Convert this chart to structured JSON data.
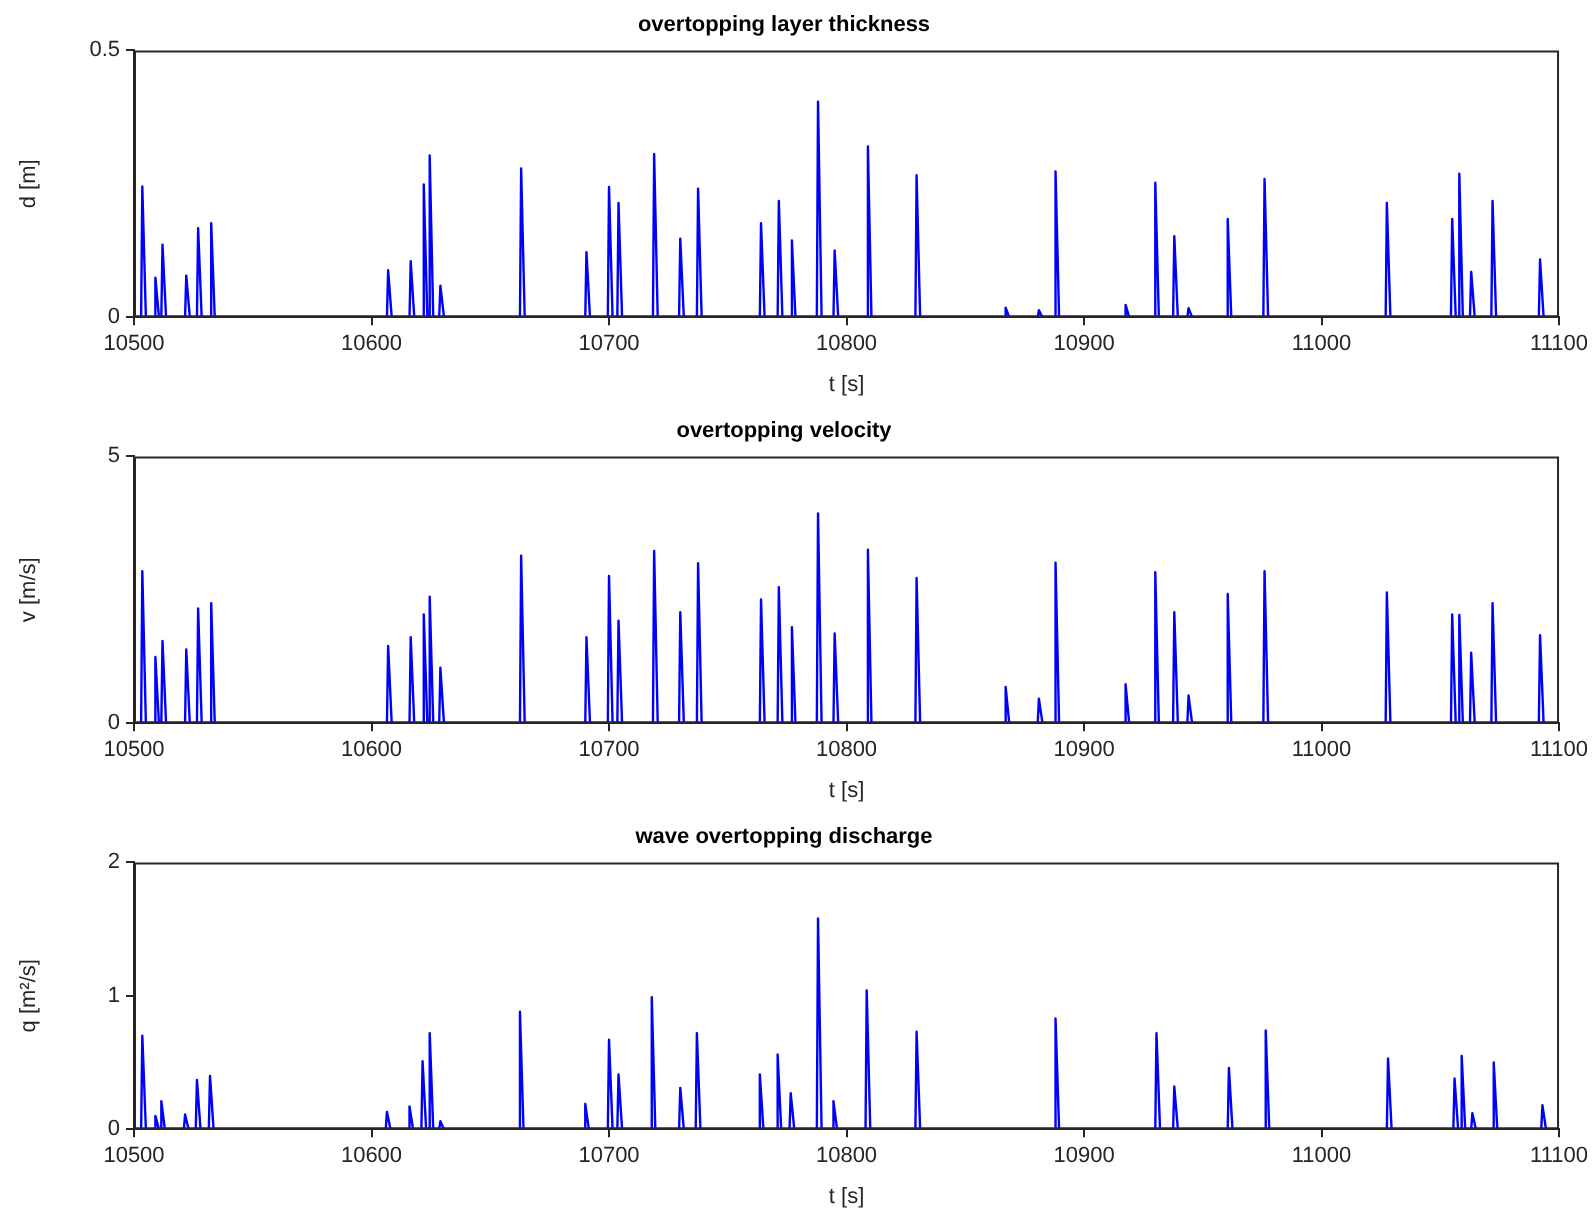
{
  "chart_data": [
    {
      "type": "line",
      "title": "overtopping layer thickness",
      "xlabel": "t [s]",
      "ylabel": "d [m]",
      "xlim": [
        10500,
        11100
      ],
      "xticks": [
        10500,
        10600,
        10700,
        10800,
        10900,
        11000,
        11100
      ],
      "ylim": [
        0,
        0.5
      ],
      "yticks": [
        0,
        0.5
      ],
      "grid": false,
      "legend": false,
      "marker": "none",
      "line_style": "solid",
      "series": [
        {
          "color": "#0000ff",
          "x": [
            10500,
            10503,
            10503.5,
            10505,
            10508.5,
            10509,
            10510.5,
            10511.5,
            10512,
            10513.5,
            10521.5,
            10522,
            10523.5,
            10526.5,
            10527,
            10528.5,
            10532,
            10532.5,
            10534,
            10606.5,
            10607,
            10608.5,
            10616,
            10616.5,
            10618,
            10621.5,
            10622,
            10623.5,
            10624,
            10624.5,
            10626,
            10628.5,
            10629,
            10630.5,
            10662.5,
            10663,
            10664.5,
            10690,
            10690.5,
            10692,
            10699.5,
            10700,
            10701.5,
            10703.5,
            10704,
            10705.5,
            10718.5,
            10719,
            10720.5,
            10729.5,
            10730,
            10731.5,
            10737,
            10737.5,
            10739,
            10763.5,
            10764,
            10765.5,
            10771,
            10771.5,
            10773,
            10776.5,
            10777,
            10778.5,
            10787.5,
            10788,
            10789.5,
            10794.5,
            10795,
            10796.5,
            10808.5,
            10809,
            10810.5,
            10829,
            10829.5,
            10831,
            10866.5,
            10867,
            10868.5,
            10880.5,
            10881,
            10882.5,
            10887.5,
            10888,
            10889.5,
            10917,
            10917.5,
            10919,
            10929.5,
            10930,
            10931.5,
            10937.5,
            10938,
            10939.5,
            10943.5,
            10944,
            10945.5,
            10960,
            10960.5,
            10962,
            10975.5,
            10976,
            10977.5,
            11027,
            11027.5,
            11029,
            11054.5,
            11055,
            11056.5,
            11057.5,
            11058,
            11059.5,
            11062.5,
            11063,
            11064.5,
            11071.5,
            11072,
            11073.5,
            11091.5,
            11092,
            11093.5
          ],
          "values": [
            0,
            0,
            0.245,
            0,
            0,
            0.074,
            0,
            0,
            0.136,
            0,
            0,
            0.078,
            0,
            0,
            0.167,
            0,
            0,
            0.176,
            0,
            0,
            0.088,
            0,
            0,
            0.105,
            0,
            0,
            0.249,
            0,
            0,
            0.303,
            0,
            0,
            0.059,
            0,
            0,
            0.279,
            0,
            0,
            0.122,
            0,
            0,
            0.244,
            0,
            0,
            0.214,
            0,
            0,
            0.306,
            0,
            0,
            0.147,
            0,
            0,
            0.241,
            0,
            0,
            0.176,
            0,
            0,
            0.218,
            0,
            0,
            0.144,
            0,
            0,
            0.404,
            0,
            0,
            0.125,
            0,
            0,
            0.32,
            0,
            0,
            0.266,
            0,
            0,
            0.018,
            0,
            0,
            0.013,
            0,
            0,
            0.273,
            0,
            0,
            0.023,
            0,
            0,
            0.252,
            0,
            0,
            0.152,
            0,
            0,
            0.017,
            0,
            0,
            0.184,
            0,
            0,
            0.259,
            0,
            0,
            0.214,
            0,
            0,
            0.184,
            0,
            0,
            0.269,
            0,
            0,
            0.085,
            0,
            0,
            0.218,
            0,
            0,
            0.108,
            0
          ]
        }
      ]
    },
    {
      "type": "line",
      "title": "overtopping velocity",
      "xlabel": "t [s]",
      "ylabel": "v [m/s]",
      "xlim": [
        10500,
        11100
      ],
      "xticks": [
        10500,
        10600,
        10700,
        10800,
        10900,
        11000,
        11100
      ],
      "ylim": [
        0,
        5
      ],
      "yticks": [
        0,
        5
      ],
      "grid": false,
      "legend": false,
      "marker": "none",
      "line_style": "solid",
      "series": [
        {
          "color": "#0000ff",
          "x": [
            10500,
            10503,
            10503.5,
            10505,
            10508.5,
            10509,
            10510.5,
            10511.5,
            10512,
            10513.5,
            10521.5,
            10522,
            10523.5,
            10526.5,
            10527,
            10528.5,
            10532,
            10532.5,
            10534,
            10606.5,
            10607,
            10608.5,
            10616,
            10616.5,
            10618,
            10621.5,
            10622,
            10623.5,
            10624,
            10624.5,
            10626,
            10628.5,
            10629,
            10630.5,
            10662.5,
            10663,
            10664.5,
            10690,
            10690.5,
            10692,
            10699.5,
            10700,
            10701.5,
            10703.5,
            10704,
            10705.5,
            10718.5,
            10719,
            10720.5,
            10729.5,
            10730,
            10731.5,
            10737,
            10737.5,
            10739,
            10763.5,
            10764,
            10765.5,
            10771,
            10771.5,
            10773,
            10776.5,
            10777,
            10778.5,
            10787.5,
            10788,
            10789.5,
            10794.5,
            10795,
            10796.5,
            10808.5,
            10809,
            10810.5,
            10829,
            10829.5,
            10831,
            10866.5,
            10867,
            10868.5,
            10880.5,
            10881,
            10882.5,
            10887.5,
            10888,
            10889.5,
            10917,
            10917.5,
            10919,
            10929.5,
            10930,
            10931.5,
            10937.5,
            10938,
            10939.5,
            10943.5,
            10944,
            10945.5,
            10960,
            10960.5,
            10962,
            10975.5,
            10976,
            10977.5,
            11027,
            11027.5,
            11029,
            11054.5,
            11055,
            11056.5,
            11057.5,
            11058,
            11059.5,
            11062.5,
            11063,
            11064.5,
            11071.5,
            11072,
            11073.5,
            11091.5,
            11092,
            11093.5
          ],
          "values": [
            0,
            0,
            2.85,
            0,
            0,
            1.24,
            0,
            0,
            1.54,
            0,
            0,
            1.38,
            0,
            0,
            2.15,
            0,
            0,
            2.25,
            0,
            0,
            1.45,
            0,
            0,
            1.61,
            0,
            0,
            2.04,
            0,
            0,
            2.37,
            0,
            0,
            1.04,
            0,
            0,
            3.14,
            0,
            0,
            1.61,
            0,
            0,
            2.76,
            0,
            0,
            1.92,
            0,
            0,
            3.23,
            0,
            0,
            2.08,
            0,
            0,
            3,
            0,
            0,
            2.32,
            0,
            0,
            2.55,
            0,
            0,
            1.8,
            0,
            0,
            3.93,
            0,
            0,
            1.68,
            0,
            0,
            3.25,
            0,
            0,
            2.72,
            0,
            0,
            0.68,
            0,
            0,
            0.46,
            0,
            0,
            3.01,
            0,
            0,
            0.73,
            0,
            0,
            2.83,
            0,
            0,
            2.08,
            0,
            0,
            0.52,
            0,
            0,
            2.42,
            0,
            0,
            2.85,
            0,
            0,
            2.45,
            0,
            0,
            2.04,
            0,
            0,
            2.03,
            0,
            0,
            1.32,
            0,
            0,
            2.25,
            0,
            0,
            1.65,
            0
          ]
        }
      ]
    },
    {
      "type": "line",
      "title": "wave overtopping discharge",
      "xlabel": "t [s]",
      "ylabel": "q [m²/s]",
      "xlim": [
        10500,
        11100
      ],
      "xticks": [
        10500,
        10600,
        10700,
        10800,
        10900,
        11000,
        11100
      ],
      "ylim": [
        0,
        2
      ],
      "yticks": [
        0,
        1,
        2
      ],
      "grid": false,
      "legend": false,
      "marker": "none",
      "line_style": "solid",
      "series": [
        {
          "color": "#0000ff",
          "x": [
            10500,
            10503,
            10503.5,
            10505,
            10508.5,
            10509,
            10510.5,
            10511,
            10511.5,
            10513,
            10521,
            10521.5,
            10523,
            10526,
            10526.5,
            10528,
            10531.5,
            10532,
            10533.5,
            10606,
            10606.5,
            10608,
            10615.5,
            10616,
            10617.5,
            10621,
            10621.5,
            10623,
            10624,
            10624.5,
            10626,
            10628.5,
            10629,
            10630.5,
            10662,
            10662.5,
            10664,
            10689.5,
            10690,
            10691.5,
            10699.5,
            10700,
            10701.5,
            10703.5,
            10704,
            10705.5,
            10717.5,
            10718,
            10719.5,
            10729.5,
            10730,
            10731.5,
            10736.5,
            10737,
            10738.5,
            10763,
            10763.5,
            10765,
            10770.5,
            10771,
            10772.5,
            10776,
            10776.5,
            10778,
            10787.5,
            10788,
            10789.5,
            10794,
            10794.5,
            10796,
            10808,
            10808.5,
            10810,
            10829,
            10829.5,
            10831,
            10887.5,
            10888,
            10889.5,
            10930,
            10930.5,
            10932,
            10937.5,
            10938,
            10939.5,
            10960.5,
            10961,
            10962.5,
            10976,
            10976.5,
            10978,
            11027.5,
            11028,
            11029.5,
            11055.5,
            11056,
            11057.5,
            11058.5,
            11059,
            11060.5,
            11063,
            11063.5,
            11065,
            11072,
            11072.5,
            11074,
            11092.5,
            11093,
            11094.5
          ],
          "values": [
            0,
            0,
            0.7,
            0,
            0,
            0.1,
            0,
            0,
            0.21,
            0,
            0,
            0.11,
            0,
            0,
            0.37,
            0,
            0,
            0.4,
            0,
            0,
            0.13,
            0,
            0,
            0.17,
            0,
            0,
            0.51,
            0,
            0,
            0.72,
            0,
            0,
            0.06,
            0,
            0,
            0.88,
            0,
            0,
            0.19,
            0,
            0,
            0.67,
            0,
            0,
            0.41,
            0,
            0,
            0.99,
            0,
            0,
            0.31,
            0,
            0,
            0.72,
            0,
            0,
            0.41,
            0,
            0,
            0.56,
            0,
            0,
            0.27,
            0,
            0,
            1.58,
            0,
            0,
            0.21,
            0,
            0,
            1.04,
            0,
            0,
            0.73,
            0,
            0,
            0.83,
            0,
            0,
            0.72,
            0,
            0,
            0.32,
            0,
            0,
            0.46,
            0,
            0,
            0.74,
            0,
            0,
            0.53,
            0,
            0,
            0.38,
            0,
            0,
            0.55,
            0,
            0,
            0.12,
            0,
            0,
            0.5,
            0,
            0,
            0.18,
            0
          ]
        }
      ]
    }
  ]
}
